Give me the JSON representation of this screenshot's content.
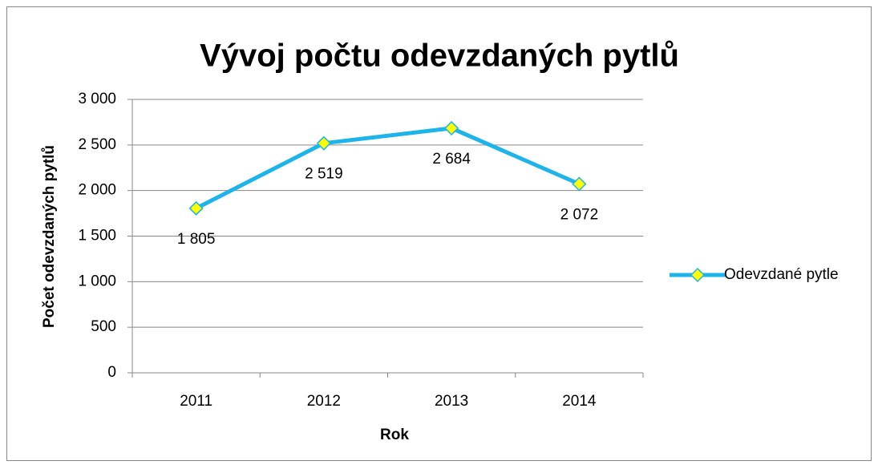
{
  "chart_data": {
    "type": "line",
    "title": "Vývoj počtu odevzdaných pytlů",
    "x_label": "Rok",
    "y_label": "Počet odevzdaných pytlů",
    "categories": [
      "2011",
      "2012",
      "2013",
      "2014"
    ],
    "series": [
      {
        "name": "Odevzdané pytle",
        "color": "#1cb4ea",
        "marker_color": "#ffff00",
        "values": [
          1805,
          2519,
          2684,
          2072
        ],
        "value_labels": [
          "1 805",
          "2 519",
          "2 684",
          "2 072"
        ]
      }
    ],
    "ylim": [
      0,
      3000
    ],
    "yticks": [
      0,
      500,
      {
        "value": 1000,
        "label": "1 000"
      },
      {
        "value": 1500,
        "label": "1 500"
      },
      {
        "value": 2000,
        "label": "2 000"
      },
      {
        "value": 2500,
        "label": "2 500"
      },
      {
        "value": 3000,
        "label": "3 000"
      }
    ],
    "grid": true,
    "legend": "right"
  }
}
